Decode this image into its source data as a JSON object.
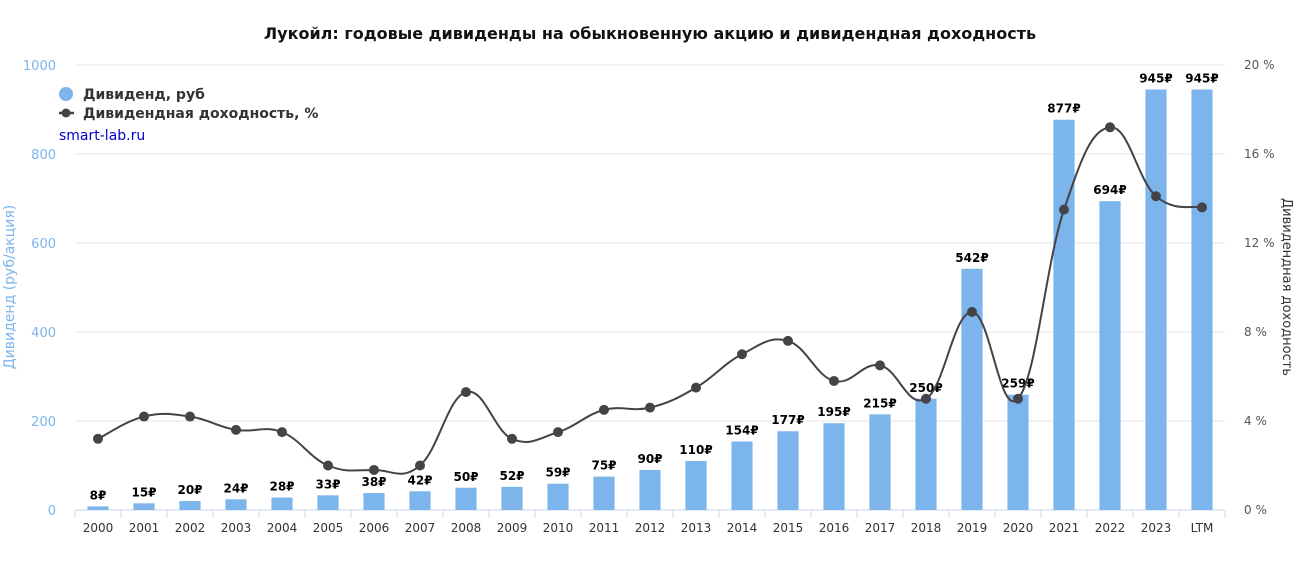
{
  "chart_data": {
    "type": "bar+line",
    "title": "Лукойл: годовые дивиденды на обыкновенную акцию и дивидендная доходность",
    "categories": [
      "2000",
      "2001",
      "2002",
      "2003",
      "2004",
      "2005",
      "2006",
      "2007",
      "2008",
      "2009",
      "2010",
      "2011",
      "2012",
      "2013",
      "2014",
      "2015",
      "2016",
      "2017",
      "2018",
      "2019",
      "2020",
      "2021",
      "2022",
      "2023",
      "LTM"
    ],
    "series": [
      {
        "name": "Дивиденд, руб",
        "type": "bar",
        "axis": "left",
        "color": "#7cb5ec",
        "values": [
          8,
          15,
          20,
          24,
          28,
          33,
          38,
          42,
          50,
          52,
          59,
          75,
          90,
          110,
          154,
          177,
          195,
          215,
          250,
          542,
          259,
          877,
          694,
          945,
          945
        ],
        "labels": [
          "8₽",
          "15₽",
          "20₽",
          "24₽",
          "28₽",
          "33₽",
          "38₽",
          "42₽",
          "50₽",
          "52₽",
          "59₽",
          "75₽",
          "90₽",
          "110₽",
          "154₽",
          "177₽",
          "195₽",
          "215₽",
          "250₽",
          "542₽",
          "259₽",
          "877₽",
          "694₽",
          "945₽",
          "945₽"
        ]
      },
      {
        "name": "Дивидендная доходность, %",
        "type": "line",
        "axis": "right",
        "color": "#434348",
        "values": [
          3.2,
          4.2,
          4.2,
          3.6,
          3.5,
          2.0,
          1.8,
          2.0,
          5.3,
          3.2,
          3.5,
          4.5,
          4.6,
          5.5,
          7.0,
          7.6,
          5.8,
          6.5,
          5.0,
          8.9,
          5.0,
          13.5,
          17.2,
          14.1,
          13.6
        ]
      }
    ],
    "yaxis_left": {
      "title": "Дивиденд (руб/акция)",
      "min": 0,
      "max": 1000,
      "ticks": [
        "0",
        "200",
        "400",
        "600",
        "800",
        "1000"
      ],
      "tick_values": [
        0,
        200,
        400,
        600,
        800,
        1000
      ]
    },
    "yaxis_right": {
      "title": "Дивидендная доходность",
      "min": 0,
      "max": 20,
      "ticks": [
        "0 %",
        "4 %",
        "8 %",
        "12 %",
        "16 %",
        "20 %"
      ],
      "tick_values": [
        0,
        4,
        8,
        12,
        16,
        20
      ]
    },
    "legend": {
      "placement": "top-left",
      "items": [
        "Дивиденд, руб",
        "Дивидендная доходность, %"
      ]
    },
    "source": "smart-lab.ru"
  }
}
